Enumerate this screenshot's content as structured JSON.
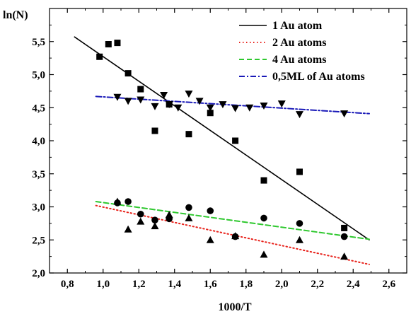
{
  "chart_data": {
    "type": "scatter",
    "xlabel": "1000/T",
    "ylabel": "ln(N)",
    "xlim": [
      0.7,
      2.7
    ],
    "ylim": [
      2.0,
      6.0
    ],
    "x_ticks": [
      "0,8",
      "1,0",
      "1,2",
      "1,4",
      "1,6",
      "1,8",
      "2,0",
      "2,2",
      "2,4",
      "2,6"
    ],
    "x_tick_values": [
      0.8,
      1.0,
      1.2,
      1.4,
      1.6,
      1.8,
      2.0,
      2.2,
      2.4,
      2.6
    ],
    "y_ticks": [
      "2,0",
      "2,5",
      "3,0",
      "3,5",
      "4,0",
      "4,5",
      "5,0",
      "5,5"
    ],
    "y_tick_values": [
      2.0,
      2.5,
      3.0,
      3.5,
      4.0,
      4.5,
      5.0,
      5.5
    ],
    "grid": false,
    "legend_position": "top-right",
    "legend": [
      {
        "label": "1 Au atom",
        "color": "#000000",
        "dash": "solid"
      },
      {
        "label": "2 Au atoms",
        "color": "#e8221b",
        "dash": "dotted"
      },
      {
        "label": "4 Au atoms",
        "color": "#2ec82e",
        "dash": "dashed"
      },
      {
        "label": "0,5ML of Au atoms",
        "color": "#1a1ab8",
        "dash": "dashdot"
      }
    ],
    "fit_lines": [
      {
        "name": "1 Au atom",
        "color": "#000000",
        "x": [
          0.84,
          2.49
        ],
        "y": [
          5.57,
          2.5
        ]
      },
      {
        "name": "2 Au atoms",
        "color": "#e8221b",
        "x": [
          0.96,
          2.49
        ],
        "y": [
          3.02,
          2.13
        ]
      },
      {
        "name": "4 Au atoms",
        "color": "#2ec82e",
        "x": [
          0.96,
          2.49
        ],
        "y": [
          3.08,
          2.51
        ]
      },
      {
        "name": "0,5ML of Au atoms",
        "color": "#1a1ab8",
        "x": [
          0.96,
          2.49
        ],
        "y": [
          4.67,
          4.41
        ]
      }
    ],
    "series": [
      {
        "marker": "square",
        "x": [
          0.98,
          1.03,
          1.08,
          1.14,
          1.21,
          1.29,
          1.37,
          1.48,
          1.6,
          1.74,
          1.9,
          2.1,
          2.35
        ],
        "y": [
          5.27,
          5.46,
          5.48,
          5.02,
          4.78,
          4.15,
          4.55,
          4.1,
          4.42,
          4.0,
          3.4,
          3.53,
          2.68
        ]
      },
      {
        "marker": "triangle-down",
        "x": [
          1.08,
          1.14,
          1.21,
          1.29,
          1.34,
          1.37,
          1.42,
          1.48,
          1.54,
          1.6,
          1.67,
          1.74,
          1.82,
          1.9,
          2.0,
          2.1,
          2.35
        ],
        "y": [
          4.66,
          4.6,
          4.62,
          4.52,
          4.69,
          4.55,
          4.5,
          4.71,
          4.6,
          4.5,
          4.55,
          4.49,
          4.5,
          4.53,
          4.56,
          4.4,
          4.41
        ]
      },
      {
        "marker": "circle",
        "x": [
          1.08,
          1.14,
          1.21,
          1.29,
          1.37,
          1.48,
          1.6,
          1.74,
          1.9,
          2.1,
          2.35
        ],
        "y": [
          3.06,
          3.08,
          2.89,
          2.8,
          2.82,
          2.99,
          2.94,
          2.55,
          2.83,
          2.75,
          2.55
        ]
      },
      {
        "marker": "triangle-up",
        "x": [
          1.08,
          1.14,
          1.21,
          1.29,
          1.37,
          1.48,
          1.6,
          1.74,
          1.9,
          2.1,
          2.35
        ],
        "y": [
          3.08,
          2.66,
          2.78,
          2.71,
          2.88,
          2.83,
          2.5,
          2.56,
          2.28,
          2.5,
          2.25
        ]
      }
    ]
  }
}
